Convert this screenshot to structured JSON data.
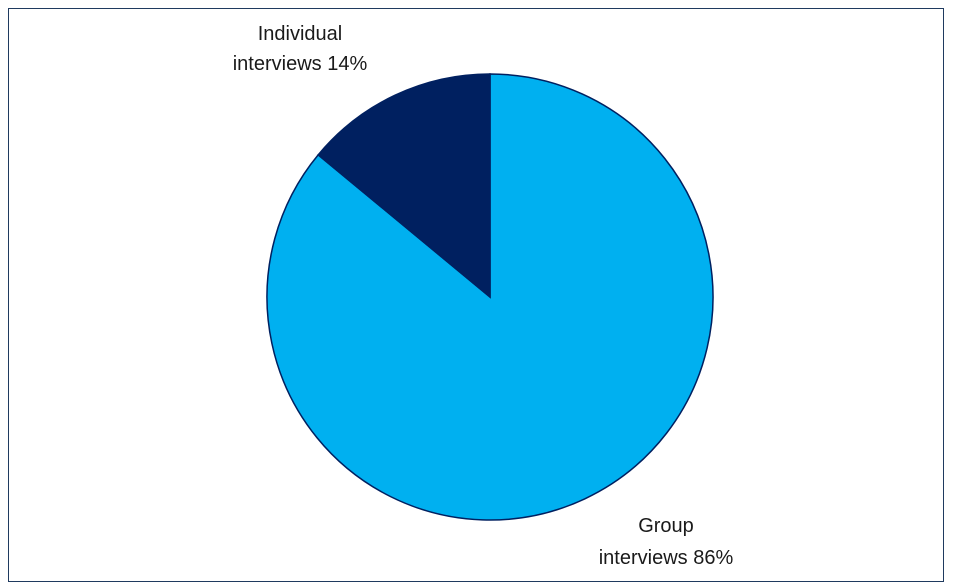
{
  "chart_data": {
    "type": "pie",
    "slices": [
      {
        "label_line1": "Group",
        "label_line2": "interviews 86%",
        "value": 86,
        "color": "#00b0f0"
      },
      {
        "label_line1": "Individual",
        "label_line2": "interviews 14%",
        "value": 14,
        "color": "#002060"
      }
    ],
    "edge_color": "#002060"
  }
}
